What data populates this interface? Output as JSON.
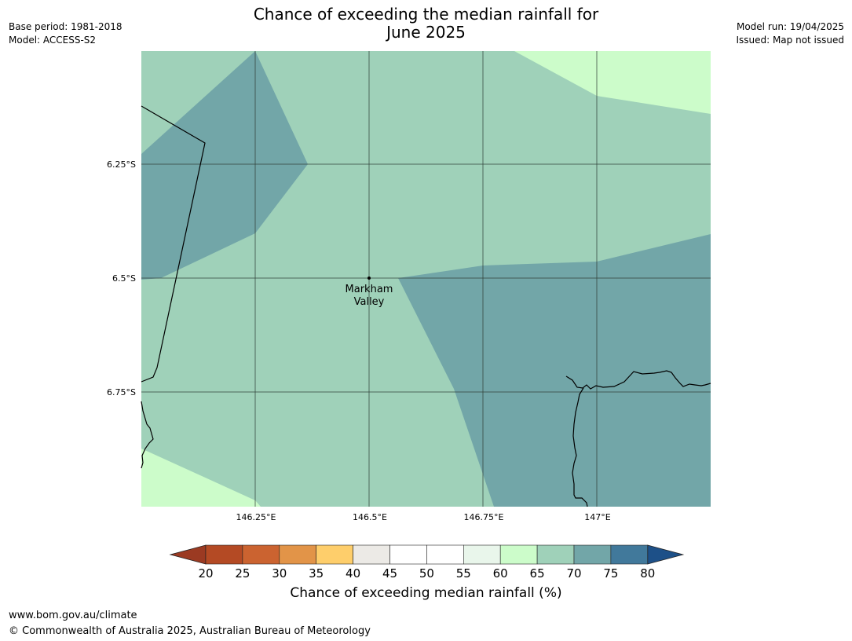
{
  "title_line1": "Chance of exceeding the median rainfall for",
  "title_line2": "June 2025",
  "meta_left": {
    "base_period": "Base period: 1981-2018",
    "model": "Model: ACCESS-S2"
  },
  "meta_right": {
    "model_run": "Model run: 19/04/2025",
    "issued": "Issued: Map not issued"
  },
  "map": {
    "lat_labels": [
      "6.25°S",
      "6.5°S",
      "6.75°S"
    ],
    "lon_labels": [
      "146.25°E",
      "146.5°E",
      "146.75°E",
      "147°E"
    ],
    "place": {
      "name_line1": "Markham",
      "name_line2": "Valley"
    },
    "zone_colors": {
      "60-65": "#ccfcca",
      "65-70": "#9fd1b9",
      "70-75": "#72a6a8"
    }
  },
  "colorbar": {
    "ticks": [
      "20",
      "25",
      "30",
      "35",
      "40",
      "45",
      "50",
      "55",
      "60",
      "65",
      "70",
      "75",
      "80"
    ],
    "colors": [
      "#9b3a22",
      "#b44a24",
      "#cb6330",
      "#e29448",
      "#fece6b",
      "#eceae6",
      "#ffffff",
      "#ffffff",
      "#e9f6eb",
      "#ccfcca",
      "#9fd1b9",
      "#72a6a8",
      "#41799b",
      "#1d5088"
    ],
    "caption": "Chance of exceeding median rainfall (%)"
  },
  "footer": {
    "url": "www.bom.gov.au/climate",
    "copyright": "© Commonwealth of Australia 2025, Australian Bureau of Meteorology"
  }
}
